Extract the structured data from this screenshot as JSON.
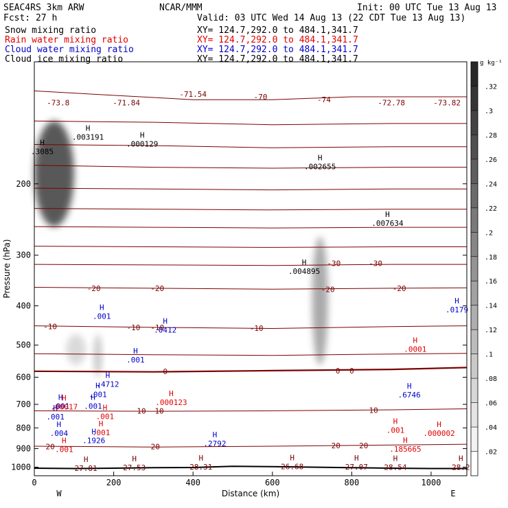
{
  "header": {
    "model": "SEAC4RS  3km ARW",
    "org": "NCAR/MMM",
    "init": "Init: 00 UTC Tue 13 Aug 13",
    "fcst": "Fcst:   27 h",
    "valid": "Valid: 03 UTC Wed 14 Aug 13 (22 CDT Tue 13 Aug 13)",
    "fields": [
      {
        "name": "Snow mixing ratio",
        "xy": "XY= 124.7,292.0 to 484.1,341.7",
        "color": "#000000"
      },
      {
        "name": "Rain water mixing ratio",
        "xy": "XY= 124.7,292.0 to 484.1,341.7",
        "color": "#e00000"
      },
      {
        "name": "Cloud water mixing ratio",
        "xy": "XY= 124.7,292.0 to 484.1,341.7",
        "color": "#0000cc"
      },
      {
        "name": "Cloud ice mixing ratio",
        "xy": "XY= 124.7,292.0 to 484.1,341.7",
        "color": "#000000"
      }
    ]
  },
  "chart_data": {
    "type": "cross-section",
    "xlabel": "Distance (km)",
    "ylabel": "Pressure (hPa)",
    "xlim": [
      0,
      1090
    ],
    "ylim": [
      1050,
      100
    ],
    "y_log": true,
    "xticks": [
      0,
      200,
      400,
      600,
      800,
      1000
    ],
    "yticks": [
      200,
      300,
      400,
      500,
      600,
      700,
      800,
      900,
      1000
    ],
    "end_labels": {
      "left": "W",
      "right": "E"
    },
    "colorbar": {
      "unit": "g kg⁻¹",
      "levels": [
        0.02,
        0.04,
        0.06,
        0.08,
        0.1,
        0.12,
        0.14,
        0.16,
        0.18,
        0.2,
        0.22,
        0.24,
        0.26,
        0.28,
        0.3,
        0.32
      ],
      "labels": [
        ".02",
        ".04",
        ".06",
        ".08",
        ".1",
        ".12",
        ".14",
        ".16",
        ".18",
        ".2",
        ".22",
        ".24",
        ".26",
        ".28",
        ".3",
        ".32"
      ]
    },
    "temperature_contours": [
      {
        "label": "-70",
        "points": [
          [
            0,
            118
          ],
          [
            200,
            121
          ],
          [
            400,
            124
          ],
          [
            600,
            124
          ],
          [
            800,
            122
          ],
          [
            1090,
            122
          ]
        ]
      },
      {
        "label": "",
        "points": [
          [
            0,
            140
          ],
          [
            300,
            141
          ],
          [
            600,
            143
          ],
          [
            900,
            142
          ],
          [
            1090,
            142
          ]
        ]
      },
      {
        "label": "",
        "points": [
          [
            0,
            160
          ],
          [
            300,
            161
          ],
          [
            600,
            163
          ],
          [
            900,
            162
          ],
          [
            1090,
            162
          ]
        ]
      },
      {
        "label": "",
        "points": [
          [
            0,
            180
          ],
          [
            300,
            182
          ],
          [
            600,
            183
          ],
          [
            900,
            182
          ],
          [
            1090,
            182
          ]
        ]
      },
      {
        "label": "",
        "points": [
          [
            0,
            205
          ],
          [
            300,
            206
          ],
          [
            600,
            207
          ],
          [
            900,
            206
          ],
          [
            1090,
            206
          ]
        ]
      },
      {
        "label": "",
        "points": [
          [
            0,
            230
          ],
          [
            300,
            231
          ],
          [
            600,
            232
          ],
          [
            900,
            231
          ],
          [
            1090,
            231
          ]
        ]
      },
      {
        "label": "",
        "points": [
          [
            0,
            255
          ],
          [
            300,
            256
          ],
          [
            600,
            257
          ],
          [
            900,
            256
          ],
          [
            1090,
            256
          ]
        ]
      },
      {
        "label": "",
        "points": [
          [
            0,
            285
          ],
          [
            300,
            286
          ],
          [
            600,
            287
          ],
          [
            900,
            286
          ],
          [
            1090,
            286
          ]
        ]
      },
      {
        "label": "-30",
        "points": [
          [
            0,
            316
          ],
          [
            300,
            317
          ],
          [
            600,
            318
          ],
          [
            900,
            316
          ],
          [
            1090,
            316
          ]
        ]
      },
      {
        "label": "-20",
        "points": [
          [
            0,
            360
          ],
          [
            300,
            362
          ],
          [
            600,
            364
          ],
          [
            900,
            362
          ],
          [
            1090,
            361
          ]
        ]
      },
      {
        "label": "-10",
        "points": [
          [
            0,
            448
          ],
          [
            300,
            452
          ],
          [
            600,
            455
          ],
          [
            900,
            450
          ],
          [
            1090,
            448
          ]
        ]
      },
      {
        "label": "",
        "points": [
          [
            0,
            525
          ],
          [
            300,
            528
          ],
          [
            600,
            530
          ],
          [
            900,
            526
          ],
          [
            1090,
            524
          ]
        ]
      },
      {
        "label": "0",
        "points": [
          [
            0,
            580
          ],
          [
            300,
            582
          ],
          [
            600,
            578
          ],
          [
            900,
            574
          ],
          [
            1090,
            568
          ]
        ]
      },
      {
        "label": "10",
        "points": [
          [
            0,
            726
          ],
          [
            300,
            728
          ],
          [
            600,
            726
          ],
          [
            900,
            722
          ],
          [
            1090,
            718
          ]
        ]
      },
      {
        "label": "20",
        "points": [
          [
            0,
            888
          ],
          [
            300,
            892
          ],
          [
            600,
            888
          ],
          [
            900,
            882
          ],
          [
            1090,
            878
          ]
        ]
      }
    ],
    "contour_labels": [
      {
        "text": "-73.8",
        "x": 60,
        "p": 126
      },
      {
        "text": "-71.84",
        "x": 232,
        "p": 126
      },
      {
        "text": "-71.54",
        "x": 400,
        "p": 120
      },
      {
        "text": "-70",
        "x": 570,
        "p": 122
      },
      {
        "text": "-74",
        "x": 730,
        "p": 124
      },
      {
        "text": "-72.78",
        "x": 900,
        "p": 126
      },
      {
        "text": "-73.82",
        "x": 1040,
        "p": 126
      },
      {
        "text": "-30",
        "x": 755,
        "p": 314
      },
      {
        "text": "-30",
        "x": 860,
        "p": 314
      },
      {
        "text": "-20",
        "x": 150,
        "p": 362
      },
      {
        "text": "-20",
        "x": 310,
        "p": 362
      },
      {
        "text": "-20",
        "x": 740,
        "p": 364
      },
      {
        "text": "-20",
        "x": 920,
        "p": 362
      },
      {
        "text": "-10",
        "x": 40,
        "p": 450
      },
      {
        "text": "-10",
        "x": 250,
        "p": 452
      },
      {
        "text": "-10",
        "x": 310,
        "p": 452
      },
      {
        "text": "-10",
        "x": 560,
        "p": 454
      },
      {
        "text": "0",
        "x": 330,
        "p": 580
      },
      {
        "text": "0",
        "x": 765,
        "p": 578
      },
      {
        "text": "0",
        "x": 800,
        "p": 578
      },
      {
        "text": "10",
        "x": 270,
        "p": 726
      },
      {
        "text": "10",
        "x": 315,
        "p": 726
      },
      {
        "text": "10",
        "x": 855,
        "p": 724
      },
      {
        "text": "20",
        "x": 40,
        "p": 890
      },
      {
        "text": "20",
        "x": 305,
        "p": 890
      },
      {
        "text": "20",
        "x": 760,
        "p": 884
      },
      {
        "text": "20",
        "x": 830,
        "p": 884
      }
    ],
    "extrema_labels": [
      {
        "text": ".003191",
        "x": 135,
        "p": 154,
        "series": "Snow mixing ratio"
      },
      {
        "text": ".000129",
        "x": 272,
        "p": 160,
        "series": "Snow mixing ratio"
      },
      {
        "text": ".3085",
        "x": 20,
        "p": 167,
        "series": "Snow mixing ratio"
      },
      {
        "text": ".002655",
        "x": 720,
        "p": 182,
        "series": "Snow mixing ratio"
      },
      {
        "text": ".007634",
        "x": 890,
        "p": 251,
        "series": "Snow mixing ratio"
      },
      {
        "text": ".004895",
        "x": 680,
        "p": 330,
        "series": "Snow mixing ratio"
      },
      {
        "text": ".001",
        "x": 170,
        "p": 426,
        "series": "Cloud water mixing ratio"
      },
      {
        "text": ".0412",
        "x": 330,
        "p": 460,
        "series": "Cloud water mixing ratio"
      },
      {
        "text": ".0179",
        "x": 1065,
        "p": 410,
        "series": "Cloud water mixing ratio"
      },
      {
        "text": ".001",
        "x": 255,
        "p": 545,
        "series": "Cloud water mixing ratio"
      },
      {
        "text": ".4712",
        "x": 185,
        "p": 626,
        "series": "Cloud water mixing ratio"
      },
      {
        "text": ".001",
        "x": 160,
        "p": 664,
        "series": "Cloud water mixing ratio"
      },
      {
        "text": ".6746",
        "x": 945,
        "p": 665,
        "series": "Cloud water mixing ratio"
      },
      {
        "text": ".001",
        "x": 66,
        "p": 710,
        "series": "Cloud water mixing ratio"
      },
      {
        "text": ".001",
        "x": 148,
        "p": 710,
        "series": "Cloud water mixing ratio"
      },
      {
        "text": ".001",
        "x": 53,
        "p": 754,
        "series": "Cloud water mixing ratio"
      },
      {
        "text": ".004",
        "x": 62,
        "p": 828,
        "series": "Cloud water mixing ratio"
      },
      {
        "text": ".1926",
        "x": 150,
        "p": 863,
        "series": "Cloud water mixing ratio"
      },
      {
        "text": ".2792",
        "x": 455,
        "p": 878,
        "series": "Cloud water mixing ratio"
      },
      {
        "text": ".00017",
        "x": 75,
        "p": 712,
        "series": "Rain water mixing ratio"
      },
      {
        "text": ".000123",
        "x": 345,
        "p": 694,
        "series": "Rain water mixing ratio"
      },
      {
        "text": ".001",
        "x": 178,
        "p": 752,
        "series": "Rain water mixing ratio"
      },
      {
        "text": ".001",
        "x": 75,
        "p": 908,
        "series": "Rain water mixing ratio"
      },
      {
        "text": ".001",
        "x": 168,
        "p": 825,
        "series": "Rain water mixing ratio"
      },
      {
        "text": ".001",
        "x": 910,
        "p": 814,
        "series": "Rain water mixing ratio"
      },
      {
        "text": ".185665",
        "x": 935,
        "p": 905,
        "series": "Rain water mixing ratio"
      },
      {
        "text": ".0001",
        "x": 960,
        "p": 513,
        "series": "Rain water mixing ratio"
      },
      {
        "text": ".000002",
        "x": 1020,
        "p": 828,
        "series": "Rain water mixing ratio"
      },
      {
        "text": "27.81",
        "x": 130,
        "p": 1010,
        "series": "temperature"
      },
      {
        "text": "27.53",
        "x": 252,
        "p": 1005,
        "series": "temperature"
      },
      {
        "text": "28.31",
        "x": 420,
        "p": 1002,
        "series": "temperature"
      },
      {
        "text": "26.68",
        "x": 650,
        "p": 1000,
        "series": "temperature"
      },
      {
        "text": "27.07",
        "x": 812,
        "p": 1002,
        "series": "temperature"
      },
      {
        "text": "28.54",
        "x": 910,
        "p": 1004,
        "series": "temperature"
      },
      {
        "text": "28.2",
        "x": 1075,
        "p": 1004,
        "series": "temperature"
      }
    ],
    "shaded_regions": [
      {
        "series": "Snow mixing ratio",
        "x": [
          0,
          100
        ],
        "p": [
          140,
          255
        ],
        "max": 0.3085
      },
      {
        "series": "Cloud ice mixing ratio",
        "x": [
          700,
          740
        ],
        "p": [
          270,
          560
        ],
        "max": 0.14
      },
      {
        "series": "Cloud ice mixing ratio",
        "x": [
          150,
          170
        ],
        "p": [
          470,
          600
        ],
        "max": 0.08
      },
      {
        "series": "Cloud ice mixing ratio",
        "x": [
          80,
          130
        ],
        "p": [
          470,
          560
        ],
        "max": 0.04
      }
    ],
    "terrain": [
      [
        0,
        1006
      ],
      [
        100,
        1008
      ],
      [
        200,
        1006
      ],
      [
        300,
        1003
      ],
      [
        400,
        1002
      ],
      [
        500,
        995
      ],
      [
        600,
        997
      ],
      [
        700,
        1000
      ],
      [
        800,
        1003
      ],
      [
        900,
        1006
      ],
      [
        1000,
        1008
      ],
      [
        1090,
        1008
      ]
    ]
  }
}
